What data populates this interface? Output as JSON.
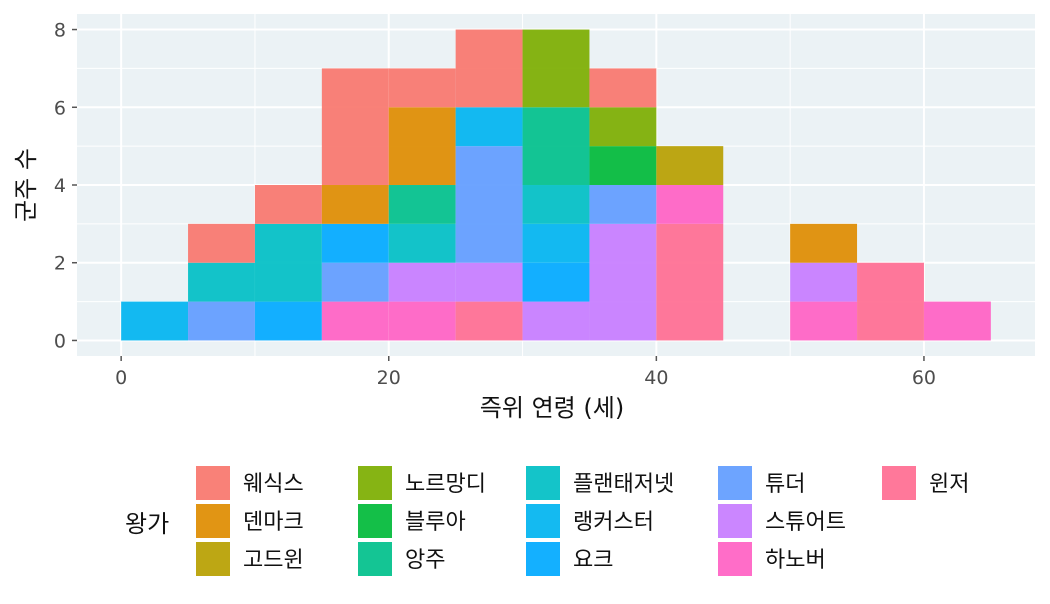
{
  "chart_data": {
    "type": "bar",
    "stacked": true,
    "histogram": true,
    "xlabel": "즉위 연령 (세)",
    "ylabel": "군주 수",
    "x_ticks": [
      0,
      20,
      40,
      60
    ],
    "y_ticks": [
      0,
      2,
      4,
      6,
      8
    ],
    "xlim": [
      -3.3,
      68.3
    ],
    "ylim": [
      -0.4,
      8.4
    ],
    "bin_width": 5,
    "bins": [
      [
        0,
        5
      ],
      [
        5,
        10
      ],
      [
        10,
        15
      ],
      [
        15,
        20
      ],
      [
        20,
        25
      ],
      [
        25,
        30
      ],
      [
        30,
        35
      ],
      [
        35,
        40
      ],
      [
        40,
        45
      ],
      [
        45,
        50
      ],
      [
        50,
        55
      ],
      [
        55,
        60
      ],
      [
        60,
        65
      ]
    ],
    "legend_title": "왕가",
    "legend_position": "bottom",
    "grid": true,
    "series": [
      {
        "name": "웨식스",
        "color": "#F8766D",
        "values": [
          0,
          1,
          1,
          3,
          1,
          2,
          0,
          1,
          0,
          0,
          0,
          0,
          0
        ]
      },
      {
        "name": "덴마크",
        "color": "#DE8C00",
        "values": [
          0,
          0,
          0,
          1,
          2,
          0,
          0,
          0,
          0,
          0,
          1,
          0,
          0
        ]
      },
      {
        "name": "고드윈",
        "color": "#B79F00",
        "values": [
          0,
          0,
          0,
          0,
          0,
          0,
          0,
          0,
          1,
          0,
          0,
          0,
          0
        ]
      },
      {
        "name": "노르망디",
        "color": "#7CAE00",
        "values": [
          0,
          0,
          0,
          0,
          0,
          0,
          2,
          1,
          0,
          0,
          0,
          0,
          0
        ]
      },
      {
        "name": "블루아",
        "color": "#00BA38",
        "values": [
          0,
          0,
          0,
          0,
          0,
          0,
          0,
          1,
          0,
          0,
          0,
          0,
          0
        ]
      },
      {
        "name": "앙주",
        "color": "#00C08B",
        "values": [
          0,
          0,
          0,
          0,
          1,
          0,
          2,
          0,
          0,
          0,
          0,
          0,
          0
        ]
      },
      {
        "name": "플랜태저넷",
        "color": "#00BFC4",
        "values": [
          0,
          1,
          2,
          0,
          1,
          0,
          1,
          0,
          0,
          0,
          0,
          0,
          0
        ]
      },
      {
        "name": "랭커스터",
        "color": "#00B4F0",
        "values": [
          1,
          0,
          0,
          0,
          0,
          1,
          1,
          0,
          0,
          0,
          0,
          0,
          0
        ]
      },
      {
        "name": "요크",
        "color": "#00A9FF",
        "values": [
          0,
          0,
          1,
          1,
          0,
          0,
          1,
          0,
          0,
          0,
          0,
          0,
          0
        ]
      },
      {
        "name": "튜더",
        "color": "#619CFF",
        "values": [
          0,
          1,
          0,
          1,
          0,
          3,
          0,
          1,
          0,
          0,
          0,
          0,
          0
        ]
      },
      {
        "name": "스튜어트",
        "color": "#C77CFF",
        "values": [
          0,
          0,
          0,
          0,
          1,
          1,
          1,
          3,
          0,
          0,
          1,
          0,
          0
        ]
      },
      {
        "name": "하노버",
        "color": "#FF61C3",
        "values": [
          0,
          0,
          0,
          1,
          1,
          0,
          0,
          0,
          1,
          0,
          1,
          0,
          1
        ]
      },
      {
        "name": "윈저",
        "color": "#FF6C91",
        "values": [
          0,
          0,
          0,
          0,
          0,
          1,
          0,
          0,
          3,
          0,
          0,
          2,
          0
        ]
      }
    ]
  }
}
